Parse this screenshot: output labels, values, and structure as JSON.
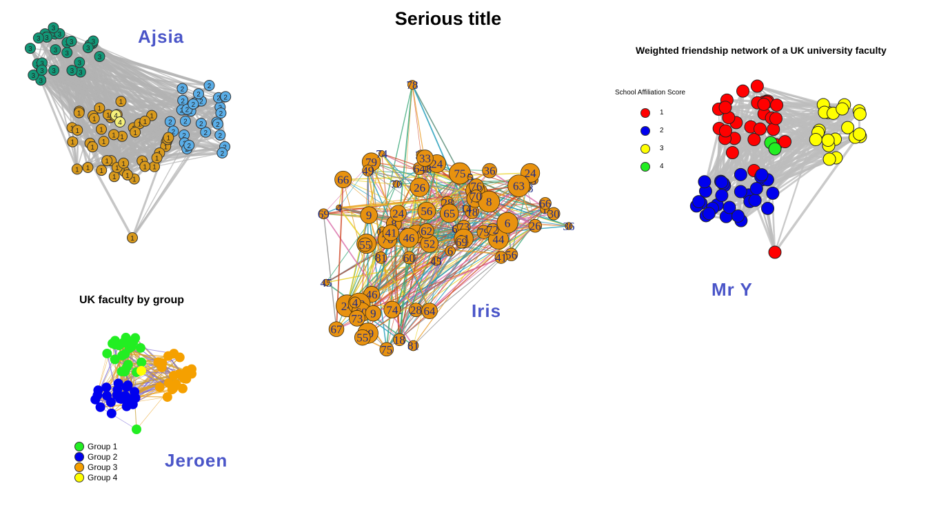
{
  "main_title": "Serious title",
  "authors": {
    "ajsia": "Ajsia",
    "iris": "Iris",
    "mry": "Mr Y",
    "jeroen": "Jeroen"
  },
  "panels": {
    "mry": {
      "title": "Weighted friendship network of a UK university faculty",
      "legend_title": "School Affiliation Score",
      "legend": [
        {
          "label": "1",
          "color": "#ff0000"
        },
        {
          "label": "2",
          "color": "#0000ee"
        },
        {
          "label": "3",
          "color": "#ffff00"
        },
        {
          "label": "4",
          "color": "#22ee22"
        }
      ]
    },
    "jeroen": {
      "title": "UK faculty by group",
      "legend": [
        {
          "label": "Group 1",
          "color": "#22ee22"
        },
        {
          "label": "Group 2",
          "color": "#0000ee"
        },
        {
          "label": "Group 3",
          "color": "#f5a000"
        },
        {
          "label": "Group 4",
          "color": "#ffff00"
        }
      ]
    },
    "ajsia": {
      "group_colors": {
        "1": "#d99a1c",
        "2": "#5aaee8",
        "3": "#129878",
        "4": "#f5f07a"
      }
    },
    "iris": {
      "node_color": "#e8920f",
      "label_color": "#1c2a88",
      "node_labels": [
        "11",
        "66",
        "30",
        "56",
        "80",
        "14",
        "6",
        "61",
        "24",
        "79",
        "58",
        "26",
        "76",
        "63",
        "8",
        "41",
        "70",
        "69",
        "72",
        "65",
        "28",
        "52",
        "62",
        "49",
        "46",
        "55",
        "64",
        "18",
        "67",
        "24",
        "33",
        "60",
        "9",
        "75",
        "81",
        "4",
        "74",
        "73",
        "78",
        "45",
        "36",
        "44",
        "1",
        "5",
        "3"
      ]
    }
  }
}
